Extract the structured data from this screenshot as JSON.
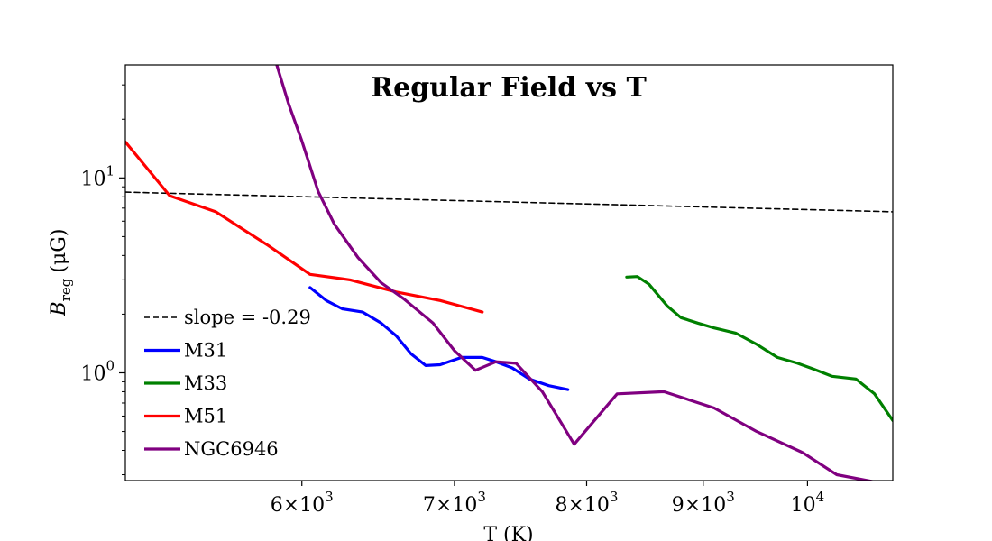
{
  "chart_data": {
    "type": "line",
    "title": "Regular Field vs T",
    "xlabel": "T (K)",
    "ylabel_main": "B",
    "ylabel_sub": "reg",
    "ylabel_unit": "(μG)",
    "x_scale": "log",
    "y_scale": "log",
    "xlim": [
      5020,
      10900
    ],
    "ylim": [
      0.28,
      38
    ],
    "x_ticks": [
      {
        "value": 6000,
        "base": "6×10",
        "exp": "3"
      },
      {
        "value": 7000,
        "base": "7×10",
        "exp": "3"
      },
      {
        "value": 8000,
        "base": "8×10",
        "exp": "3"
      },
      {
        "value": 9000,
        "base": "9×10",
        "exp": "3"
      },
      {
        "value": 10000,
        "base": "10",
        "exp": "4"
      }
    ],
    "y_ticks": [
      {
        "value": 1,
        "base": "10",
        "exp": "0"
      },
      {
        "value": 10,
        "base": "10",
        "exp": "1"
      }
    ],
    "y_minor_ticks": [
      0.3,
      0.4,
      0.5,
      0.6,
      0.7,
      0.8,
      0.9,
      2,
      3,
      4,
      5,
      6,
      7,
      8,
      9,
      20,
      30
    ],
    "grid": false,
    "legend_position": "lower-left",
    "series": [
      {
        "name": "slope = -0.29",
        "color": "#000000",
        "dashed": true,
        "x": [
          5020,
          10900
        ],
        "y": [
          8.45,
          6.7
        ]
      },
      {
        "name": "M31",
        "color": "#0000ff",
        "dashed": false,
        "x": [
          6050,
          6150,
          6250,
          6380,
          6500,
          6600,
          6700,
          6800,
          6900,
          7050,
          7200,
          7300,
          7420,
          7550,
          7700,
          7850
        ],
        "y": [
          2.74,
          2.35,
          2.13,
          2.05,
          1.8,
          1.55,
          1.25,
          1.09,
          1.1,
          1.2,
          1.2,
          1.14,
          1.06,
          0.93,
          0.86,
          0.82
        ]
      },
      {
        "name": "M33",
        "color": "#008000",
        "dashed": false,
        "x": [
          8330,
          8420,
          8520,
          8680,
          8800,
          8950,
          9100,
          9300,
          9500,
          9700,
          9900,
          10050,
          10250,
          10500,
          10700,
          10900
        ],
        "y": [
          3.1,
          3.12,
          2.85,
          2.2,
          1.92,
          1.8,
          1.7,
          1.6,
          1.4,
          1.2,
          1.12,
          1.05,
          0.96,
          0.93,
          0.78,
          0.57
        ]
      },
      {
        "name": "M51",
        "color": "#ff0000",
        "dashed": false,
        "x": [
          5020,
          5250,
          5500,
          5800,
          6050,
          6300,
          6600,
          6900,
          7200
        ],
        "y": [
          15.3,
          8.1,
          6.7,
          4.5,
          3.2,
          3.0,
          2.6,
          2.35,
          2.05
        ]
      },
      {
        "name": "NGC6946",
        "color": "#800080",
        "dashed": false,
        "x": [
          5850,
          5920,
          6000,
          6100,
          6200,
          6350,
          6500,
          6650,
          6850,
          7000,
          7150,
          7300,
          7450,
          7650,
          7900,
          8250,
          8650,
          9100,
          9500,
          9950,
          10300,
          10800
        ],
        "y": [
          38,
          24,
          15.5,
          8.5,
          5.8,
          3.9,
          2.9,
          2.4,
          1.8,
          1.3,
          1.03,
          1.14,
          1.12,
          0.8,
          0.43,
          0.78,
          0.8,
          0.66,
          0.5,
          0.39,
          0.3,
          0.27
        ]
      }
    ]
  }
}
